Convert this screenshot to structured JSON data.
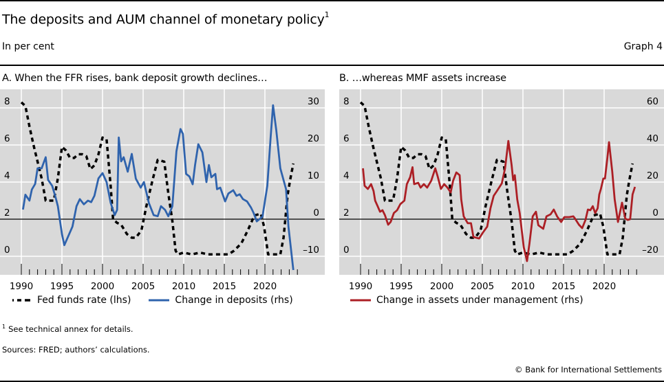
{
  "header": {
    "title": "The deposits and AUM channel of monetary policy",
    "title_footnote_ref": "1",
    "subtitle": "In per cent",
    "graph_number": "Graph 4"
  },
  "colors": {
    "plot_background": "#d9d9d9",
    "gridline": "#ffffff",
    "ffr": "#000000",
    "deposits": "#2f63ad",
    "aum": "#ac1f25"
  },
  "footer": {
    "footnote_marker": "1",
    "footnote_text": "See technical annex for details.",
    "sources": "Sources: FRED; authors’ calculations.",
    "copyright": "© Bank for International Settlements"
  },
  "chart_data": [
    {
      "type": "line",
      "title": "A. When the FFR rises, bank deposit growth declines…",
      "xlabel": "",
      "x_ticks": [
        "1990",
        "1995",
        "2000",
        "2005",
        "2010",
        "2015",
        "2020"
      ],
      "xlim": [
        1988.3,
        2028.1
      ],
      "y_left": {
        "label": "lhs",
        "ticks": [
          "8",
          "6",
          "4",
          "2",
          "0"
        ],
        "ylim": [
          -1.4,
          8.9
        ]
      },
      "y_right": {
        "label": "rhs",
        "ticks": [
          "30",
          "20",
          "10",
          "0",
          "–10"
        ],
        "ylim": [
          -17,
          34.5
        ]
      },
      "grid": true,
      "zero_line_rhs": 0,
      "legend": {
        "placement": "bottom",
        "entries": [
          "Fed funds rate (lhs)",
          "Change in deposits (rhs)"
        ]
      },
      "series": [
        {
          "name": "Fed funds rate (lhs)",
          "axis": "left",
          "style": "dashed",
          "x": [
            1990.0,
            1990.5,
            1991.0,
            1991.5,
            1992.0,
            1992.5,
            1993.0,
            1993.5,
            1994.0,
            1994.5,
            1995.0,
            1995.5,
            1996.0,
            1996.5,
            1997.0,
            1997.5,
            1998.0,
            1998.5,
            1999.0,
            1999.5,
            2000.0,
            2000.5,
            2001.0,
            2001.3,
            2001.8,
            2002.3,
            2003.0,
            2003.6,
            2004.1,
            2004.8,
            2005.4,
            2006.1,
            2006.8,
            2007.6,
            2008.1,
            2008.6,
            2009.0,
            2009.3,
            2010.0,
            2011.0,
            2012.0,
            2013.0,
            2014.0,
            2015.0,
            2015.5,
            2016.2,
            2017.1,
            2017.9,
            2018.7,
            2019.5,
            2019.9,
            2020.4,
            2020.9,
            2021.9,
            2022.3,
            2022.8,
            2023.1,
            2023.5
          ],
          "values": [
            8.3,
            8.1,
            7.0,
            6.0,
            5.1,
            4.2,
            3.0,
            3.0,
            3.0,
            4.2,
            5.9,
            5.7,
            5.3,
            5.3,
            5.5,
            5.5,
            5.4,
            4.7,
            4.9,
            5.5,
            6.4,
            6.3,
            3.8,
            2.0,
            1.8,
            1.7,
            1.2,
            1.0,
            1.0,
            1.4,
            2.7,
            4.0,
            5.2,
            5.1,
            3.4,
            1.9,
            0.3,
            0.1,
            0.2,
            0.1,
            0.2,
            0.1,
            0.1,
            0.1,
            0.1,
            0.3,
            0.7,
            1.4,
            2.2,
            2.3,
            1.6,
            0.1,
            0.1,
            0.1,
            1.0,
            3.3,
            4.1,
            5.0
          ]
        },
        {
          "name": "Change in deposits (rhs)",
          "axis": "right",
          "style": "solid",
          "x": [
            1990.2,
            1990.5,
            1991.0,
            1991.3,
            1991.7,
            1992.0,
            1992.5,
            1993.0,
            1993.3,
            1993.8,
            1994.2,
            1994.5,
            1995.0,
            1995.3,
            1995.8,
            1996.3,
            1996.8,
            1997.2,
            1997.7,
            1998.2,
            1998.6,
            1999.0,
            1999.5,
            2000.0,
            2000.5,
            2001.0,
            2001.5,
            2001.8,
            2002.0,
            2002.3,
            2002.6,
            2003.1,
            2003.6,
            2004.1,
            2004.7,
            2005.1,
            2005.7,
            2006.3,
            2006.8,
            2007.2,
            2007.7,
            2008.1,
            2008.6,
            2009.1,
            2009.6,
            2009.9,
            2010.3,
            2010.7,
            2011.1,
            2011.4,
            2011.8,
            2012.3,
            2012.8,
            2013.1,
            2013.4,
            2013.9,
            2014.1,
            2014.5,
            2015.1,
            2015.5,
            2016.1,
            2016.5,
            2016.9,
            2017.3,
            2017.8,
            2018.3,
            2018.6,
            2019.0,
            2019.7,
            2020.3,
            2020.7,
            2021.0,
            2021.4,
            2021.9,
            2022.6,
            2022.9,
            2023.5
          ],
          "values": [
            2.6,
            6.6,
            5.0,
            8.0,
            9.5,
            13.7,
            13.7,
            16.7,
            10.6,
            9.0,
            6.0,
            3.5,
            -4.0,
            -7.0,
            -4.5,
            -2.0,
            3.5,
            5.4,
            4.0,
            5.0,
            4.6,
            6.3,
            11.0,
            12.4,
            10.0,
            4.4,
            1.1,
            2.5,
            22.0,
            15.6,
            16.7,
            12.8,
            17.6,
            10.9,
            8.5,
            10.0,
            4.4,
            1.1,
            0.8,
            3.5,
            2.5,
            0.8,
            3.5,
            18.3,
            24.3,
            23.0,
            12.2,
            11.5,
            9.4,
            14.6,
            20.2,
            18.0,
            10.0,
            14.6,
            11.3,
            12.2,
            8.1,
            8.5,
            4.8,
            6.9,
            7.8,
            6.3,
            6.7,
            5.4,
            4.8,
            3.1,
            1.7,
            -0.6,
            0.7,
            9.0,
            22.0,
            30.7,
            24.0,
            13.7,
            8.1,
            -2.0,
            -13.7
          ]
        }
      ]
    },
    {
      "type": "line",
      "title": "B. …whereas MMF assets increase",
      "xlabel": "",
      "x_ticks": [
        "1990",
        "1995",
        "2000",
        "2005",
        "2010",
        "2015",
        "2020"
      ],
      "xlim": [
        1988.3,
        2025.9
      ],
      "y_left": {
        "label": "lhs",
        "ticks": [
          "8",
          "6",
          "4",
          "2",
          "0"
        ],
        "ylim": [
          -1.4,
          8.9
        ]
      },
      "y_right": {
        "label": "rhs",
        "ticks": [
          "60",
          "40",
          "20",
          "0",
          "–20"
        ],
        "ylim": [
          -34,
          69
        ]
      },
      "grid": true,
      "zero_line_rhs": 0,
      "legend": {
        "placement": "bottom",
        "entries": [
          "Change in assets under management (rhs)"
        ]
      },
      "series": [
        {
          "name": "Fed funds rate (lhs)",
          "axis": "left",
          "style": "dashed",
          "legend": false,
          "x": [
            1990.0,
            1990.5,
            1991.0,
            1991.5,
            1992.0,
            1992.5,
            1993.0,
            1993.5,
            1994.0,
            1994.5,
            1995.0,
            1995.5,
            1996.0,
            1996.5,
            1997.0,
            1997.5,
            1998.0,
            1998.5,
            1999.0,
            1999.5,
            2000.0,
            2000.5,
            2001.0,
            2001.3,
            2001.8,
            2002.3,
            2003.0,
            2003.6,
            2004.1,
            2004.8,
            2005.4,
            2006.1,
            2006.8,
            2007.6,
            2008.1,
            2008.6,
            2009.0,
            2009.3,
            2010.0,
            2011.0,
            2012.0,
            2013.0,
            2014.0,
            2015.0,
            2015.5,
            2016.2,
            2017.1,
            2017.9,
            2018.7,
            2019.5,
            2019.9,
            2020.4,
            2020.9,
            2021.9,
            2022.3,
            2022.8,
            2023.1,
            2023.5
          ],
          "values": [
            8.3,
            8.1,
            7.0,
            6.0,
            5.1,
            4.2,
            3.0,
            3.0,
            3.0,
            4.2,
            5.9,
            5.7,
            5.3,
            5.3,
            5.5,
            5.5,
            5.4,
            4.7,
            4.9,
            5.5,
            6.4,
            6.3,
            3.8,
            2.0,
            1.8,
            1.7,
            1.2,
            1.0,
            1.0,
            1.4,
            2.7,
            4.0,
            5.2,
            5.1,
            3.4,
            1.9,
            0.3,
            0.1,
            0.2,
            0.1,
            0.2,
            0.1,
            0.1,
            0.1,
            0.1,
            0.3,
            0.7,
            1.4,
            2.2,
            2.3,
            1.6,
            0.1,
            0.1,
            0.1,
            1.0,
            3.3,
            4.1,
            5.0
          ]
        },
        {
          "name": "Change in assets under management (rhs)",
          "axis": "right",
          "style": "solid",
          "x": [
            1990.3,
            1990.5,
            1990.9,
            1991.3,
            1991.6,
            1991.8,
            1992.1,
            1992.4,
            1992.7,
            1993.0,
            1993.4,
            1993.7,
            1994.1,
            1994.5,
            1994.9,
            1995.4,
            1995.7,
            1996.1,
            1996.4,
            1996.6,
            1997.1,
            1997.4,
            1997.8,
            1998.2,
            1998.7,
            1999.2,
            1999.5,
            1999.9,
            2000.3,
            2000.7,
            2001.1,
            2001.4,
            2001.8,
            2002.2,
            2002.4,
            2002.7,
            2003.2,
            2003.6,
            2003.9,
            2004.6,
            2005.1,
            2005.6,
            2006.0,
            2006.4,
            2006.8,
            2007.4,
            2007.8,
            2008.2,
            2008.6,
            2008.8,
            2009.0,
            2009.3,
            2009.6,
            2010.1,
            2010.5,
            2010.8,
            2011.2,
            2011.6,
            2011.9,
            2012.5,
            2012.9,
            2013.4,
            2013.8,
            2014.2,
            2014.7,
            2015.1,
            2015.7,
            2016.2,
            2016.4,
            2016.9,
            2017.3,
            2017.7,
            2018.0,
            2018.3,
            2018.6,
            2018.9,
            2019.2,
            2019.4,
            2019.6,
            2019.9,
            2020.1,
            2020.4,
            2020.6,
            2021.0,
            2021.3,
            2021.7,
            2022.2,
            2022.6,
            2022.9,
            2023.2,
            2023.5,
            2023.8
          ],
          "values": [
            27.4,
            18.0,
            16.3,
            18.9,
            15.2,
            10.0,
            7.0,
            4.0,
            4.8,
            2.2,
            -3.0,
            -1.5,
            3.3,
            4.8,
            8.1,
            10.0,
            18.9,
            22.6,
            28.0,
            18.9,
            19.6,
            17.0,
            18.9,
            17.0,
            20.7,
            27.4,
            23.0,
            16.3,
            18.9,
            17.0,
            14.4,
            20.7,
            25.2,
            23.7,
            10.7,
            1.5,
            -2.2,
            -2.2,
            -9.6,
            -10.4,
            -7.0,
            -4.0,
            5.9,
            12.6,
            15.2,
            19.3,
            27.4,
            42.2,
            29.3,
            21.0,
            23.7,
            10.7,
            3.3,
            -15.2,
            -22.6,
            -13.3,
            1.5,
            4.0,
            -3.3,
            -5.2,
            1.5,
            2.6,
            5.2,
            1.5,
            -1.5,
            1.1,
            1.1,
            1.5,
            0.4,
            -3.0,
            -4.8,
            -0.4,
            5.2,
            4.8,
            7.0,
            3.3,
            5.9,
            13.3,
            16.3,
            21.9,
            21.9,
            33.0,
            41.5,
            25.6,
            10.7,
            -1.5,
            8.9,
            0.4,
            -0.4,
            0.0,
            13.3,
            17.4
          ]
        }
      ]
    }
  ]
}
